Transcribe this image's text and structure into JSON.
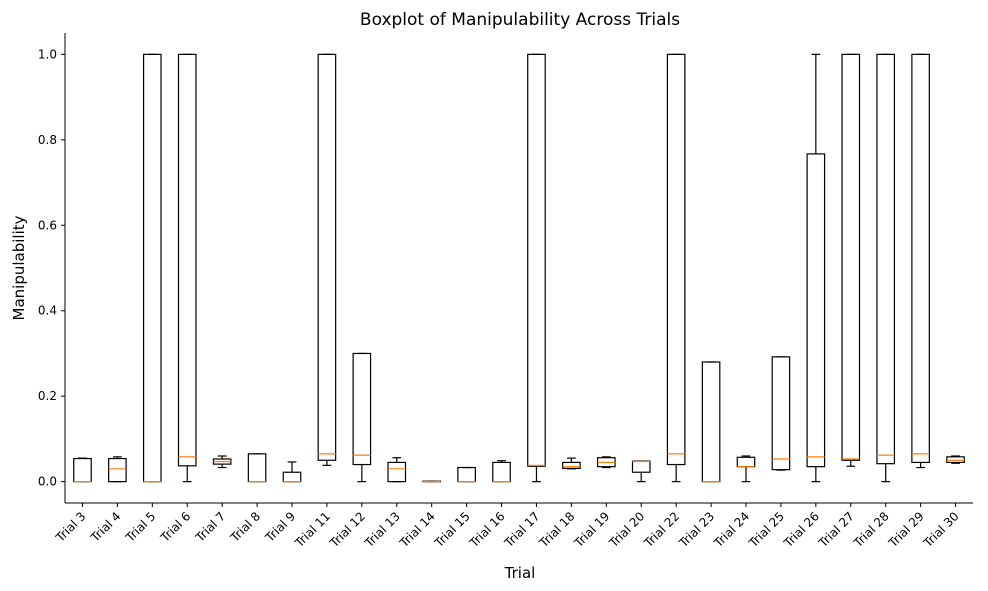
{
  "chart_data": {
    "type": "boxplot",
    "title": "Boxplot of Manipulability Across Trials",
    "xlabel": "Trial",
    "ylabel": "Manipulability",
    "ylim": [
      -0.05,
      1.05
    ],
    "yticks": [
      "0.0",
      "0.2",
      "0.4",
      "0.6",
      "0.8",
      "1.0"
    ],
    "grid": false,
    "colors": {
      "box": "#000000",
      "median": "#ff7f0e"
    },
    "categories": [
      "Trial 3",
      "Trial 4",
      "Trial 5",
      "Trial 6",
      "Trial 7",
      "Trial 8",
      "Trial 9",
      "Trial 11",
      "Trial 12",
      "Trial 13",
      "Trial 14",
      "Trial 15",
      "Trial 16",
      "Trial 17",
      "Trial 18",
      "Trial 19",
      "Trial 20",
      "Trial 22",
      "Trial 23",
      "Trial 24",
      "Trial 25",
      "Trial 26",
      "Trial 27",
      "Trial 28",
      "Trial 29",
      "Trial 30"
    ],
    "boxes": [
      {
        "whislo": 0.0,
        "q1": 0.0,
        "med": 0.0,
        "q3": 0.054,
        "whishi": 0.055
      },
      {
        "whislo": 0.0,
        "q1": 0.0,
        "med": 0.03,
        "q3": 0.054,
        "whishi": 0.058
      },
      {
        "whislo": 0.0,
        "q1": 0.0,
        "med": 0.0,
        "q3": 1.0,
        "whishi": 1.0
      },
      {
        "whislo": 0.0,
        "q1": 0.037,
        "med": 0.058,
        "q3": 1.0,
        "whishi": 1.0
      },
      {
        "whislo": 0.033,
        "q1": 0.041,
        "med": 0.047,
        "q3": 0.053,
        "whishi": 0.06
      },
      {
        "whislo": 0.0,
        "q1": 0.0,
        "med": 0.0,
        "q3": 0.065,
        "whishi": 0.065
      },
      {
        "whislo": 0.0,
        "q1": 0.0,
        "med": 0.0,
        "q3": 0.022,
        "whishi": 0.046
      },
      {
        "whislo": 0.038,
        "q1": 0.05,
        "med": 0.065,
        "q3": 1.0,
        "whishi": 1.0
      },
      {
        "whislo": 0.0,
        "q1": 0.04,
        "med": 0.062,
        "q3": 0.3,
        "whishi": 0.3
      },
      {
        "whislo": 0.0,
        "q1": 0.0,
        "med": 0.03,
        "q3": 0.045,
        "whishi": 0.056
      },
      {
        "whislo": 0.0,
        "q1": 0.0,
        "med": 0.0,
        "q3": 0.001,
        "whishi": 0.001
      },
      {
        "whislo": 0.0,
        "q1": 0.0,
        "med": 0.0,
        "q3": 0.033,
        "whishi": 0.033
      },
      {
        "whislo": 0.0,
        "q1": 0.0,
        "med": 0.0,
        "q3": 0.045,
        "whishi": 0.049
      },
      {
        "whislo": 0.0,
        "q1": 0.036,
        "med": 0.038,
        "q3": 1.0,
        "whishi": 1.0
      },
      {
        "whislo": 0.03,
        "q1": 0.031,
        "med": 0.035,
        "q3": 0.045,
        "whishi": 0.055
      },
      {
        "whislo": 0.033,
        "q1": 0.035,
        "med": 0.045,
        "q3": 0.056,
        "whishi": 0.058
      },
      {
        "whislo": 0.0,
        "q1": 0.022,
        "med": 0.047,
        "q3": 0.048,
        "whishi": 0.048
      },
      {
        "whislo": 0.0,
        "q1": 0.04,
        "med": 0.065,
        "q3": 1.0,
        "whishi": 1.0
      },
      {
        "whislo": 0.0,
        "q1": 0.0,
        "med": 0.0,
        "q3": 0.28,
        "whishi": 0.28
      },
      {
        "whislo": 0.0,
        "q1": 0.035,
        "med": 0.035,
        "q3": 0.057,
        "whishi": 0.06
      },
      {
        "whislo": 0.027,
        "q1": 0.028,
        "med": 0.053,
        "q3": 0.292,
        "whishi": 0.292
      },
      {
        "whislo": 0.0,
        "q1": 0.035,
        "med": 0.058,
        "q3": 0.767,
        "whishi": 1.0
      },
      {
        "whislo": 0.036,
        "q1": 0.05,
        "med": 0.053,
        "q3": 1.0,
        "whishi": 1.0
      },
      {
        "whislo": 0.0,
        "q1": 0.042,
        "med": 0.062,
        "q3": 1.0,
        "whishi": 1.0
      },
      {
        "whislo": 0.033,
        "q1": 0.045,
        "med": 0.065,
        "q3": 1.0,
        "whishi": 1.0
      },
      {
        "whislo": 0.043,
        "q1": 0.045,
        "med": 0.05,
        "q3": 0.058,
        "whishi": 0.06
      }
    ]
  }
}
